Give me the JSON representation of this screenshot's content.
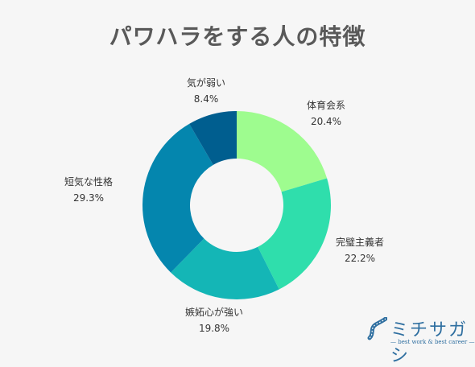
{
  "title": "パワハラをする人の特徴",
  "chart_data": {
    "type": "pie",
    "subtype": "donut",
    "title": "パワハラをする人の特徴",
    "categories": [
      "体育会系",
      "完璧主義者",
      "嫉妬心が強い",
      "短気な性格",
      "気が弱い"
    ],
    "values": [
      20.4,
      22.2,
      19.8,
      29.3,
      8.4
    ],
    "labels": [
      "20.4%",
      "22.2%",
      "19.8%",
      "29.3%",
      "8.4%"
    ],
    "colors": [
      "#9efc8f",
      "#2fdeac",
      "#14b6b6",
      "#0486ae",
      "#005e8f"
    ],
    "legend": "none"
  },
  "brand": {
    "name": "ミチサガシ",
    "tagline": "— best work & best career —",
    "logo_icon": "road-logo-icon"
  }
}
